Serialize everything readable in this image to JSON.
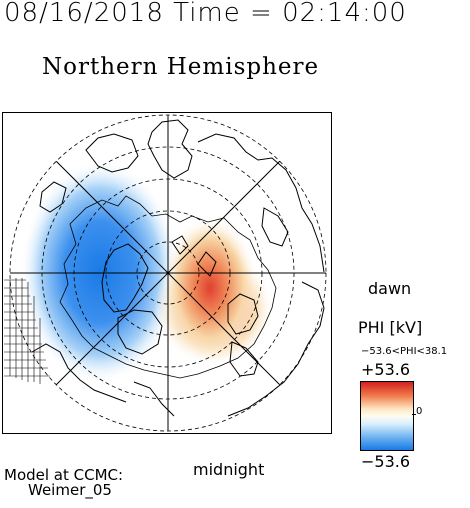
{
  "header": {
    "timestamp": "08/16/2018 Time = 02:14:00",
    "hemisphere_title": "Northern Hemisphere"
  },
  "map": {
    "orientation_labels": {
      "dawn": "dawn",
      "midnight": "midnight"
    },
    "potential_pattern": {
      "negative_cell": "dusk side, centered left of pole",
      "positive_cell": "dawn side, centered right of pole"
    }
  },
  "colorbar": {
    "title": "PHI [kV]",
    "range_text": "−53.6<PHI<38.1",
    "max_label": "+53.6",
    "min_label": "−53.6",
    "zero_label": "0",
    "colors": {
      "positive": "#d42020",
      "zero": "#fffdf0",
      "negative": "#1a7ae6"
    }
  },
  "credit": {
    "line1": "Model at CCMC:",
    "line2": "Weimer_05"
  }
}
